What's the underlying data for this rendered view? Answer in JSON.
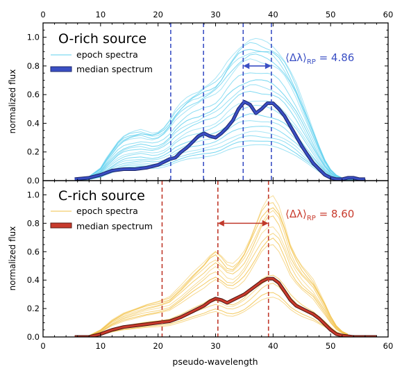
{
  "chart_data": [
    {
      "type": "line",
      "panel": "top",
      "title": "O-rich source",
      "xlabel": "",
      "ylabel": "normalized flux",
      "xlim": [
        0,
        60
      ],
      "ylim": [
        0,
        1.1
      ],
      "xticks": [
        "0",
        "10",
        "20",
        "30",
        "40",
        "50",
        "60"
      ],
      "yticks": [
        "0.0",
        "0.2",
        "0.4",
        "0.6",
        "0.8",
        "1.0"
      ],
      "legend": [
        {
          "label": "epoch spectra",
          "color": "#5fd0ee"
        },
        {
          "label": "median spectrum",
          "color": "#3a4fc4"
        }
      ],
      "legend_position": "top-left",
      "annotation": {
        "prefix": "⟨Δλ⟩",
        "subscript": "RP",
        "text": " = 4.86",
        "color": "#3a4fc4"
      },
      "vlines": [
        22.2,
        27.9,
        34.8,
        39.7
      ],
      "arrow": [
        34.8,
        39.7
      ],
      "epoch_scales": [
        0.98,
        0.95,
        0.92,
        0.9,
        0.87,
        0.84,
        0.76,
        0.7,
        0.66,
        0.62,
        0.56,
        0.52,
        0.46,
        0.42,
        0.38,
        0.34,
        0.31,
        0.28,
        0.25
      ],
      "median": {
        "x": [
          5.5,
          8,
          10,
          12,
          14,
          16,
          18,
          20,
          21,
          22,
          23,
          24,
          25,
          26,
          27,
          28,
          29,
          30,
          31,
          32,
          33,
          34,
          35,
          36,
          37,
          38,
          39,
          40,
          41,
          42,
          43,
          44,
          45,
          46,
          47,
          48,
          49,
          50,
          51,
          52,
          53,
          54,
          55,
          56
        ],
        "y": [
          0.01,
          0.02,
          0.04,
          0.07,
          0.08,
          0.08,
          0.09,
          0.11,
          0.13,
          0.15,
          0.16,
          0.2,
          0.23,
          0.27,
          0.31,
          0.33,
          0.31,
          0.3,
          0.33,
          0.37,
          0.42,
          0.5,
          0.55,
          0.53,
          0.47,
          0.5,
          0.54,
          0.54,
          0.5,
          0.45,
          0.38,
          0.31,
          0.24,
          0.18,
          0.12,
          0.08,
          0.04,
          0.02,
          0.01,
          0.01,
          0.02,
          0.02,
          0.01,
          0.01
        ]
      },
      "epoch_shape": {
        "x": [
          6,
          8,
          10,
          11,
          12,
          13,
          14,
          15,
          16,
          17,
          18,
          19,
          20,
          21,
          22,
          23,
          24,
          25,
          26,
          27,
          28,
          29,
          30,
          31,
          32,
          33,
          34,
          35,
          36,
          37,
          38,
          39,
          40,
          41,
          42,
          43,
          44,
          45,
          46,
          47,
          48,
          49,
          50,
          51,
          52,
          53,
          54,
          55,
          56
        ],
        "y": [
          0.01,
          0.03,
          0.09,
          0.16,
          0.22,
          0.28,
          0.32,
          0.34,
          0.35,
          0.36,
          0.35,
          0.34,
          0.35,
          0.38,
          0.43,
          0.5,
          0.55,
          0.59,
          0.62,
          0.64,
          0.67,
          0.69,
          0.72,
          0.77,
          0.84,
          0.9,
          0.95,
          0.98,
          1.0,
          1.0,
          0.99,
          0.98,
          0.96,
          0.92,
          0.86,
          0.78,
          0.69,
          0.58,
          0.47,
          0.36,
          0.25,
          0.15,
          0.08,
          0.04,
          0.02,
          0.01,
          0.01,
          0.01,
          0.01
        ]
      }
    },
    {
      "type": "line",
      "panel": "bottom",
      "title": "C-rich source",
      "xlabel": "pseudo-wavelength",
      "ylabel": "normalized flux",
      "xlim": [
        0,
        60
      ],
      "ylim": [
        0,
        1.1
      ],
      "xticks": [
        "0",
        "10",
        "20",
        "30",
        "40",
        "50",
        "60"
      ],
      "yticks": [
        "0.0",
        "0.2",
        "0.4",
        "0.6",
        "0.8",
        "1.0"
      ],
      "legend": [
        {
          "label": "epoch spectra",
          "color": "#f2c24a"
        },
        {
          "label": "median spectrum",
          "color": "#c83a2c"
        }
      ],
      "legend_position": "top-left",
      "annotation": {
        "prefix": "⟨Δλ⟩",
        "subscript": "RP",
        "text": " = 8.60",
        "color": "#c83a2c"
      },
      "vlines": [
        20.7,
        30.4,
        39.2
      ],
      "arrow": [
        30.4,
        39.2
      ],
      "epoch_scales": [
        1.0,
        0.97,
        0.94,
        0.9,
        0.86,
        0.8,
        0.75,
        0.7,
        0.66,
        0.45,
        0.42,
        0.38,
        0.32,
        0.29
      ],
      "median": {
        "x": [
          5.5,
          8,
          10,
          12,
          14,
          16,
          18,
          20,
          22,
          24,
          26,
          28,
          29,
          30,
          31,
          32,
          33,
          34,
          35,
          36,
          37,
          38,
          39,
          40,
          41,
          42,
          43,
          44,
          45,
          46,
          47,
          48,
          49,
          50,
          51,
          52,
          54,
          56,
          58
        ],
        "y": [
          0.0,
          0.0,
          0.02,
          0.05,
          0.07,
          0.08,
          0.09,
          0.1,
          0.11,
          0.14,
          0.18,
          0.22,
          0.25,
          0.27,
          0.26,
          0.24,
          0.26,
          0.28,
          0.3,
          0.33,
          0.36,
          0.39,
          0.41,
          0.41,
          0.38,
          0.32,
          0.26,
          0.22,
          0.2,
          0.18,
          0.16,
          0.13,
          0.09,
          0.05,
          0.02,
          0.01,
          0.0,
          0.0,
          0.0
        ]
      },
      "epoch_shape": {
        "x": [
          5.5,
          8,
          10,
          12,
          14,
          16,
          18,
          20,
          22,
          24,
          26,
          28,
          29,
          30,
          31,
          32,
          33,
          34,
          35,
          36,
          37,
          38,
          39,
          40,
          41,
          42,
          43,
          44,
          45,
          46,
          47,
          48,
          49,
          50,
          51,
          52,
          53
        ],
        "y": [
          0.0,
          0.01,
          0.05,
          0.12,
          0.17,
          0.2,
          0.23,
          0.25,
          0.28,
          0.36,
          0.45,
          0.53,
          0.58,
          0.61,
          0.57,
          0.52,
          0.51,
          0.55,
          0.61,
          0.7,
          0.8,
          0.9,
          0.96,
          0.98,
          0.92,
          0.8,
          0.66,
          0.57,
          0.5,
          0.45,
          0.4,
          0.32,
          0.24,
          0.15,
          0.08,
          0.04,
          0.02
        ]
      }
    }
  ]
}
